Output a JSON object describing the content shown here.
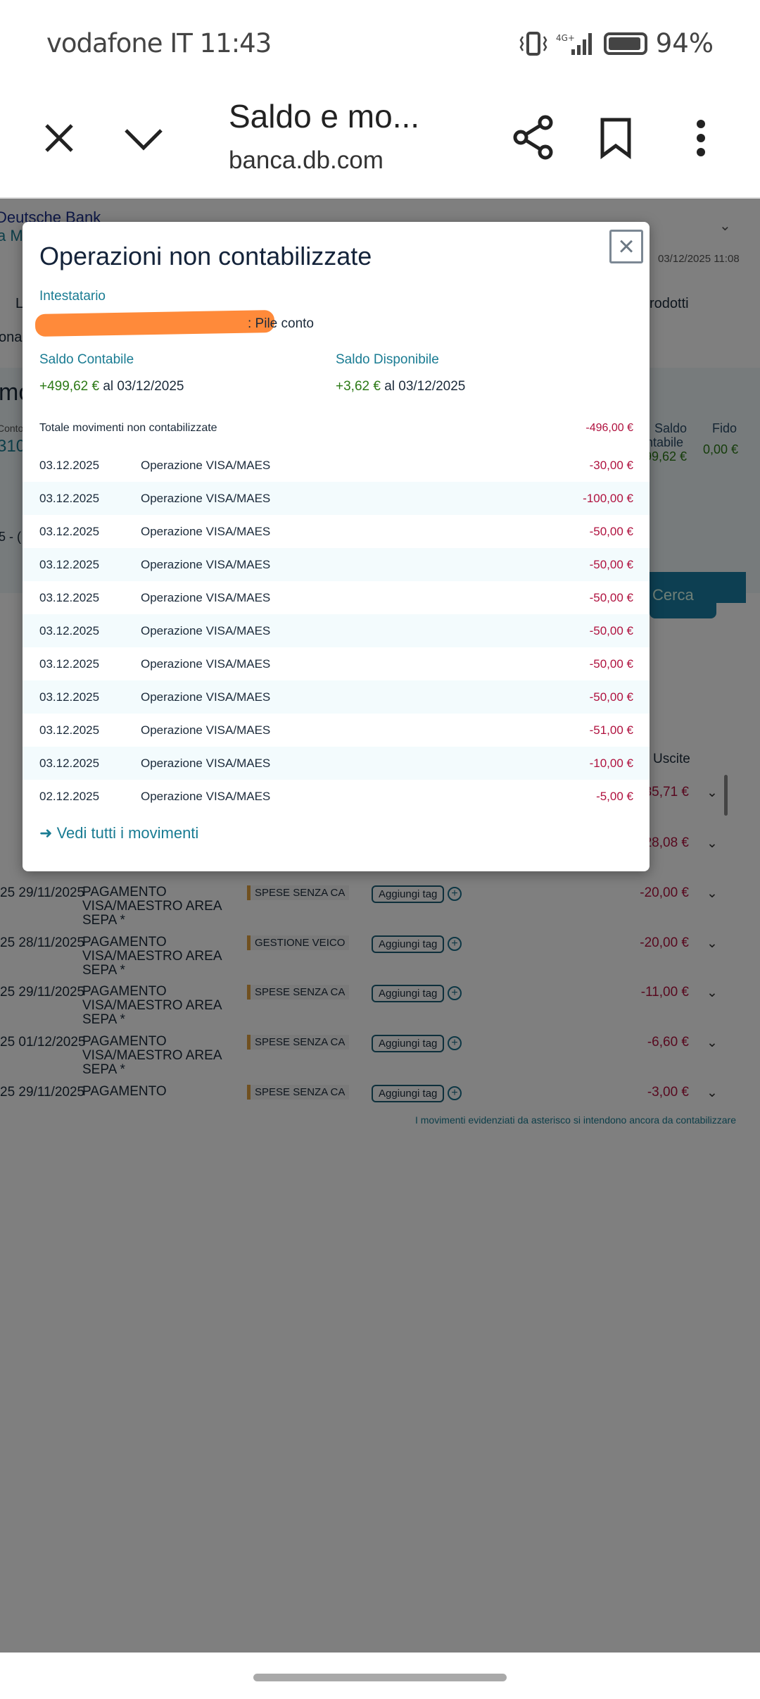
{
  "status_bar": {
    "carrier": "vodafone IT",
    "time": "11:43",
    "network": "4G+",
    "battery": "94%",
    "battery_level": 0.94
  },
  "browser": {
    "title": "Saldo e mo...",
    "url": "banca.db.com",
    "icons": [
      "close-icon",
      "chevron-down-icon",
      "share-icon",
      "bookmark-icon",
      "more-vert-icon"
    ]
  },
  "background": {
    "bank_name": "Deutsche Bank",
    "bank_sub": "a M",
    "timestamp": "03/12/2025 11:08",
    "nav_left": "L",
    "nav_right": "rodotti",
    "nav_left2": "onal",
    "section_title": "mo",
    "conto_label": "Conto",
    "conto_value": "310",
    "saldo_label": "Saldo",
    "saldo_label2": "ntabile",
    "saldo_value": "99,62 €",
    "fido_label": "Fido",
    "fido_value": "0,00 €",
    "period_fragment": "5 - (",
    "search_button": "Cerca",
    "uscite_header": "Uscite",
    "rows": [
      {
        "date": "",
        "desc": "",
        "category": "",
        "amount": "-35,71 €"
      },
      {
        "date": "",
        "desc": "",
        "category": "",
        "amount": "-28,08 €"
      },
      {
        "date": "25 29/11/2025",
        "desc": "PAGAMENTO VISA/MAESTRO AREA SEPA *",
        "category": "SPESE SENZA CA",
        "amount": "-20,00 €"
      },
      {
        "date": "25 28/11/2025",
        "desc": "PAGAMENTO VISA/MAESTRO AREA SEPA *",
        "category": "GESTIONE VEICO",
        "amount": "-20,00 €"
      },
      {
        "date": "25 29/11/2025",
        "desc": "PAGAMENTO VISA/MAESTRO AREA SEPA *",
        "category": "SPESE SENZA CA",
        "amount": "-11,00 €"
      },
      {
        "date": "25 01/12/2025",
        "desc": "PAGAMENTO VISA/MAESTRO AREA SEPA *",
        "category": "SPESE SENZA CA",
        "amount": "-6,60 €"
      },
      {
        "date": "25 29/11/2025",
        "desc": "PAGAMENTO",
        "category": "SPESE SENZA CA",
        "amount": "-3,00 €"
      }
    ],
    "add_tag_label": "Aggiungi tag",
    "footnote": "I movimenti evidenziati da asterisco si intendono ancora da contabilizzare"
  },
  "modal": {
    "title": "Operazioni non contabilizzate",
    "holder_label": "Intestatario",
    "holder_value": ": Pile conto",
    "saldo_contabile_label": "Saldo Contabile",
    "saldo_contabile_amount": "+499,62 €",
    "saldo_contabile_date": "al 03/12/2025",
    "saldo_disponibile_label": "Saldo Disponibile",
    "saldo_disponibile_amount": "+3,62 €",
    "saldo_disponibile_date": "al 03/12/2025",
    "total_label": "Totale movimenti non contabilizzate",
    "total_amount": "-496,00 €",
    "rows": [
      {
        "date": "03.12.2025",
        "desc": "Operazione VISA/MAES",
        "amount": "-30,00 €"
      },
      {
        "date": "03.12.2025",
        "desc": "Operazione VISA/MAES",
        "amount": "-100,00 €"
      },
      {
        "date": "03.12.2025",
        "desc": "Operazione VISA/MAES",
        "amount": "-50,00 €"
      },
      {
        "date": "03.12.2025",
        "desc": "Operazione VISA/MAES",
        "amount": "-50,00 €"
      },
      {
        "date": "03.12.2025",
        "desc": "Operazione VISA/MAES",
        "amount": "-50,00 €"
      },
      {
        "date": "03.12.2025",
        "desc": "Operazione VISA/MAES",
        "amount": "-50,00 €"
      },
      {
        "date": "03.12.2025",
        "desc": "Operazione VISA/MAES",
        "amount": "-50,00 €"
      },
      {
        "date": "03.12.2025",
        "desc": "Operazione VISA/MAES",
        "amount": "-50,00 €"
      },
      {
        "date": "03.12.2025",
        "desc": "Operazione VISA/MAES",
        "amount": "-51,00 €"
      },
      {
        "date": "03.12.2025",
        "desc": "Operazione VISA/MAES",
        "amount": "-10,00 €"
      },
      {
        "date": "02.12.2025",
        "desc": "Operazione VISA/MAES",
        "amount": "-5,00 €"
      }
    ],
    "link_label": "Vedi tutti i movimenti"
  },
  "colors": {
    "accent": "#1a7c93",
    "negative": "#b0123f",
    "positive": "#2d7a17",
    "redaction": "#ff8a3a"
  }
}
